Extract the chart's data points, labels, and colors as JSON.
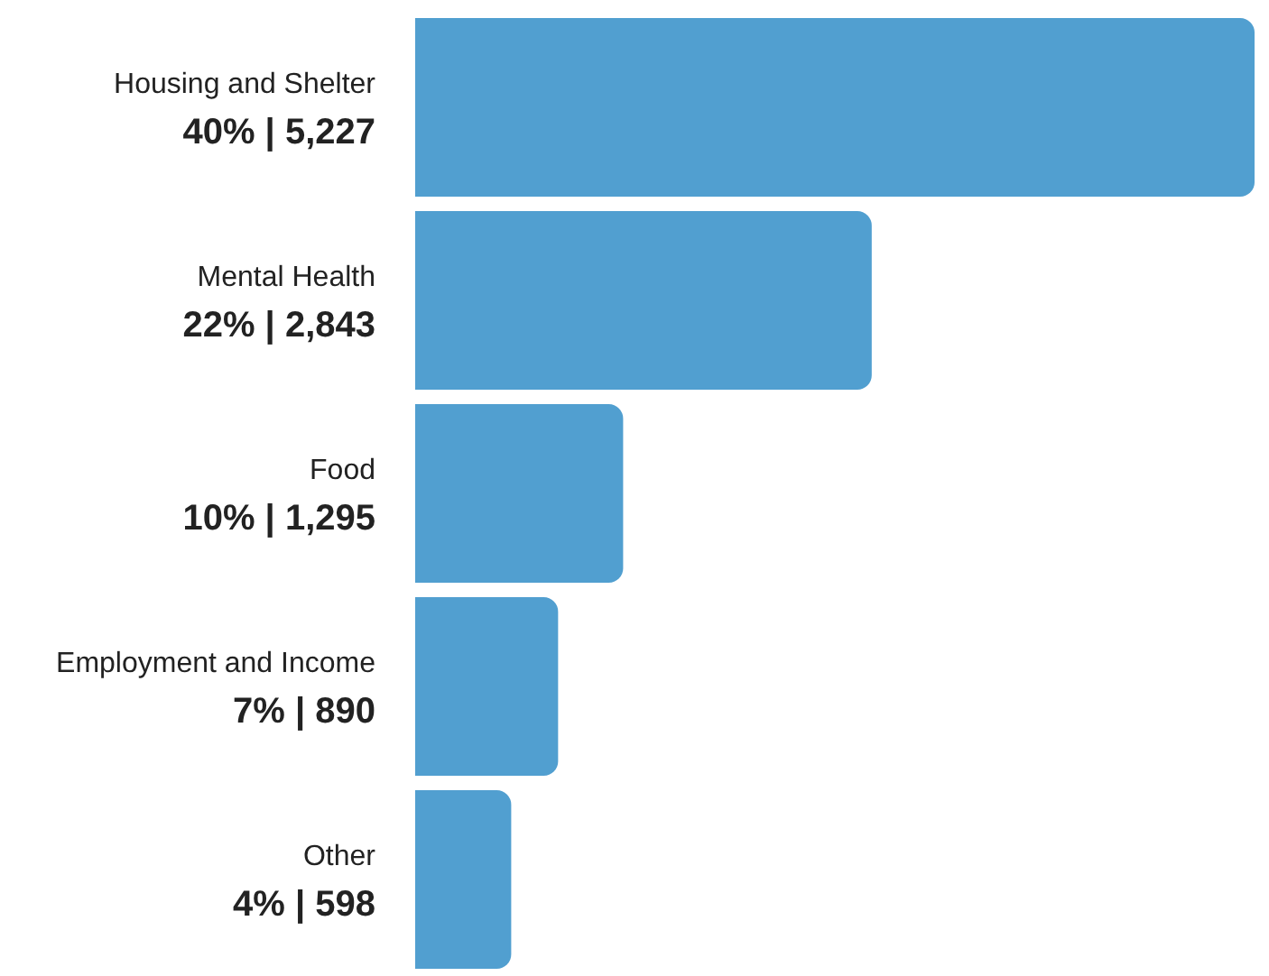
{
  "chart_data": {
    "type": "bar",
    "orientation": "horizontal",
    "categories": [
      "Housing and Shelter",
      "Mental Health",
      "Food",
      "Employment and Income",
      "Other"
    ],
    "values": [
      5227,
      2843,
      1295,
      890,
      598
    ],
    "value_labels": [
      "40% | 5,227",
      "22% | 2,843",
      "10% | 1,295",
      "7% | 890",
      "4% | 598"
    ],
    "color": "#519fd0"
  }
}
